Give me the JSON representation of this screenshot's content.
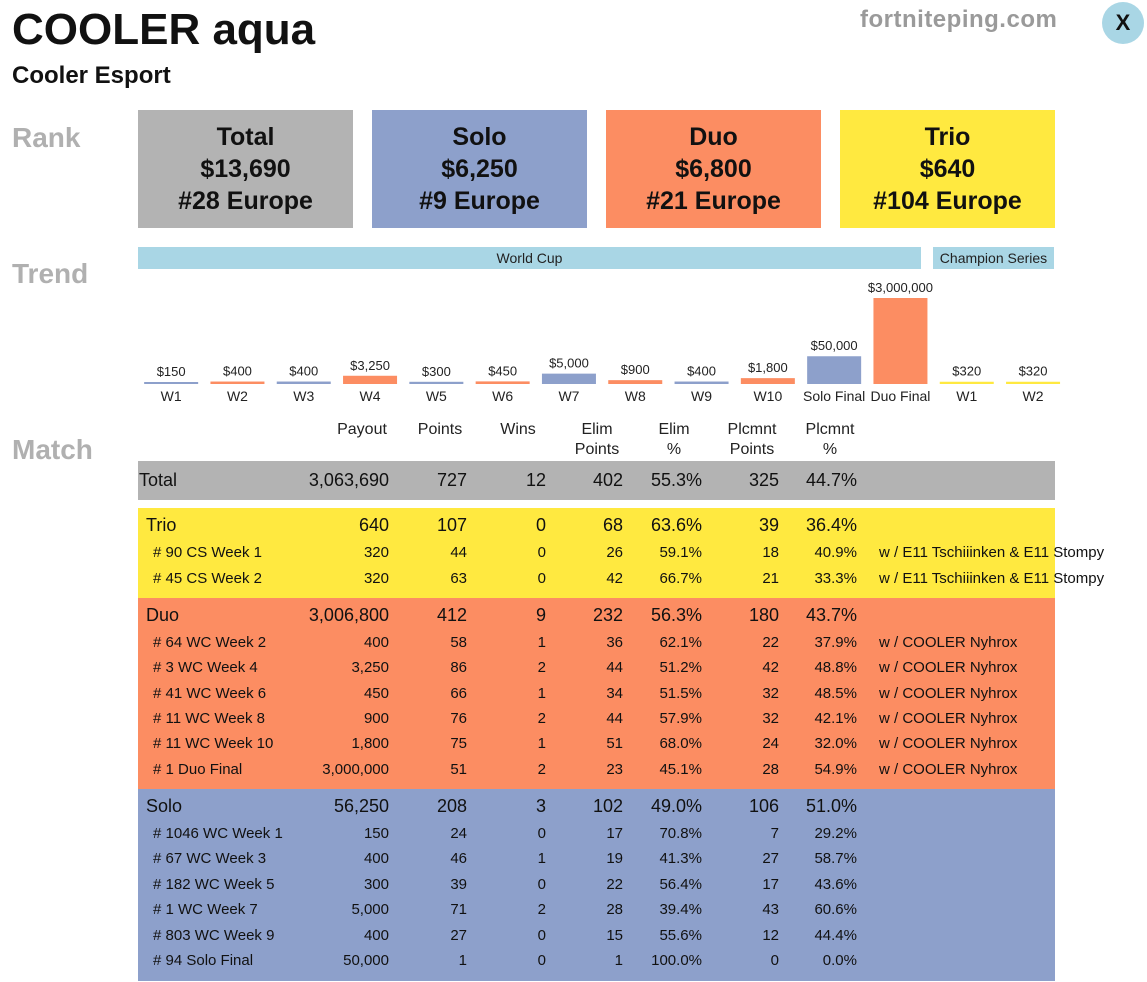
{
  "header": {
    "player_name": "COOLER aqua",
    "team_name": "Cooler Esport",
    "site": "fortniteping.com",
    "close_label": "X"
  },
  "sections": {
    "rank": "Rank",
    "trend": "Trend",
    "match": "Match"
  },
  "rank_cards": [
    {
      "title": "Total",
      "earnings": "$13,690",
      "rank": "#28 Europe",
      "color": "#b3b3b3"
    },
    {
      "title": "Solo",
      "earnings": "$6,250",
      "rank": "#9 Europe",
      "color": "#8da0cb"
    },
    {
      "title": "Duo",
      "earnings": "$6,800",
      "rank": "#21 Europe",
      "color": "#fc8d62"
    },
    {
      "title": "Trio",
      "earnings": "$640",
      "rank": "#104 Europe",
      "color": "#ffe940"
    }
  ],
  "trend": {
    "banners": [
      {
        "label": "World Cup"
      },
      {
        "label": "Champion Series"
      }
    ]
  },
  "chart_data": {
    "type": "bar",
    "categories": [
      "W1",
      "W2",
      "W3",
      "W4",
      "W5",
      "W6",
      "W7",
      "W8",
      "W9",
      "W10",
      "Solo Final",
      "Duo Final",
      "W1",
      "W2"
    ],
    "values": [
      150,
      400,
      400,
      3250,
      300,
      450,
      5000,
      900,
      400,
      1800,
      50000,
      3000000,
      320,
      320
    ],
    "value_labels": [
      "$150",
      "$400",
      "$400",
      "$3,250",
      "$300",
      "$450",
      "$5,000",
      "$900",
      "$400",
      "$1,800",
      "$50,000",
      "$3,000,000",
      "$320",
      "$320"
    ],
    "mode": [
      "solo",
      "duo",
      "solo",
      "duo",
      "solo",
      "duo",
      "solo",
      "duo",
      "solo",
      "duo",
      "solo",
      "duo",
      "trio",
      "trio"
    ],
    "scale": "log",
    "colors": {
      "solo": "#8da0cb",
      "duo": "#fc8d62",
      "trio": "#ffe940"
    }
  },
  "match": {
    "columns": [
      {
        "id": "payout",
        "label": "Payout"
      },
      {
        "id": "points",
        "label": "Points"
      },
      {
        "id": "wins",
        "label": "Wins"
      },
      {
        "id": "elim_points",
        "label": "Elim\nPoints"
      },
      {
        "id": "elim_pct",
        "label": "Elim\n%"
      },
      {
        "id": "plc_points",
        "label": "Plcmnt\nPoints"
      },
      {
        "id": "plc_pct",
        "label": "Plcmnt\n%"
      }
    ],
    "total": {
      "label": "Total",
      "payout": "3,063,690",
      "points": "727",
      "wins": "12",
      "elim_points": "402",
      "elim_pct": "55.3%",
      "plc_points": "325",
      "plc_pct": "44.7%"
    },
    "groups": [
      {
        "color": "#ffe940",
        "summary": {
          "label": "Trio",
          "payout": "640",
          "points": "107",
          "wins": "0",
          "elim_points": "68",
          "elim_pct": "63.6%",
          "plc_points": "39",
          "plc_pct": "36.4%"
        },
        "rows": [
          {
            "label": "# 90 CS Week 1",
            "payout": "320",
            "points": "44",
            "wins": "0",
            "elim_points": "26",
            "elim_pct": "59.1%",
            "plc_points": "18",
            "plc_pct": "40.9%",
            "partner": "w / E11 Tschiiinken & E11 Stompy"
          },
          {
            "label": "# 45 CS Week 2",
            "payout": "320",
            "points": "63",
            "wins": "0",
            "elim_points": "42",
            "elim_pct": "66.7%",
            "plc_points": "21",
            "plc_pct": "33.3%",
            "partner": "w / E11 Tschiiinken & E11 Stompy"
          }
        ]
      },
      {
        "color": "#fc8d62",
        "summary": {
          "label": "Duo",
          "payout": "3,006,800",
          "points": "412",
          "wins": "9",
          "elim_points": "232",
          "elim_pct": "56.3%",
          "plc_points": "180",
          "plc_pct": "43.7%"
        },
        "rows": [
          {
            "label": "# 64 WC Week 2",
            "payout": "400",
            "points": "58",
            "wins": "1",
            "elim_points": "36",
            "elim_pct": "62.1%",
            "plc_points": "22",
            "plc_pct": "37.9%",
            "partner": "w / COOLER Nyhrox"
          },
          {
            "label": "# 3 WC Week 4",
            "payout": "3,250",
            "points": "86",
            "wins": "2",
            "elim_points": "44",
            "elim_pct": "51.2%",
            "plc_points": "42",
            "plc_pct": "48.8%",
            "partner": "w / COOLER Nyhrox"
          },
          {
            "label": "# 41 WC Week 6",
            "payout": "450",
            "points": "66",
            "wins": "1",
            "elim_points": "34",
            "elim_pct": "51.5%",
            "plc_points": "32",
            "plc_pct": "48.5%",
            "partner": "w / COOLER Nyhrox"
          },
          {
            "label": "# 11 WC Week 8",
            "payout": "900",
            "points": "76",
            "wins": "2",
            "elim_points": "44",
            "elim_pct": "57.9%",
            "plc_points": "32",
            "plc_pct": "42.1%",
            "partner": "w / COOLER Nyhrox"
          },
          {
            "label": "# 11 WC Week 10",
            "payout": "1,800",
            "points": "75",
            "wins": "1",
            "elim_points": "51",
            "elim_pct": "68.0%",
            "plc_points": "24",
            "plc_pct": "32.0%",
            "partner": "w / COOLER Nyhrox"
          },
          {
            "label": "# 1 Duo Final",
            "payout": "3,000,000",
            "points": "51",
            "wins": "2",
            "elim_points": "23",
            "elim_pct": "45.1%",
            "plc_points": "28",
            "plc_pct": "54.9%",
            "partner": "w / COOLER Nyhrox"
          }
        ]
      },
      {
        "color": "#8da0cb",
        "summary": {
          "label": "Solo",
          "payout": "56,250",
          "points": "208",
          "wins": "3",
          "elim_points": "102",
          "elim_pct": "49.0%",
          "plc_points": "106",
          "plc_pct": "51.0%"
        },
        "rows": [
          {
            "label": "# 1046 WC Week 1",
            "payout": "150",
            "points": "24",
            "wins": "0",
            "elim_points": "17",
            "elim_pct": "70.8%",
            "plc_points": "7",
            "plc_pct": "29.2%",
            "partner": ""
          },
          {
            "label": "# 67 WC Week 3",
            "payout": "400",
            "points": "46",
            "wins": "1",
            "elim_points": "19",
            "elim_pct": "41.3%",
            "plc_points": "27",
            "plc_pct": "58.7%",
            "partner": ""
          },
          {
            "label": "# 182 WC Week 5",
            "payout": "300",
            "points": "39",
            "wins": "0",
            "elim_points": "22",
            "elim_pct": "56.4%",
            "plc_points": "17",
            "plc_pct": "43.6%",
            "partner": ""
          },
          {
            "label": "# 1 WC Week 7",
            "payout": "5,000",
            "points": "71",
            "wins": "2",
            "elim_points": "28",
            "elim_pct": "39.4%",
            "plc_points": "43",
            "plc_pct": "60.6%",
            "partner": ""
          },
          {
            "label": "# 803 WC Week 9",
            "payout": "400",
            "points": "27",
            "wins": "0",
            "elim_points": "15",
            "elim_pct": "55.6%",
            "plc_points": "12",
            "plc_pct": "44.4%",
            "partner": ""
          },
          {
            "label": "# 94 Solo Final",
            "payout": "50,000",
            "points": "1",
            "wins": "0",
            "elim_points": "1",
            "elim_pct": "100.0%",
            "plc_points": "0",
            "plc_pct": "0.0%",
            "partner": ""
          }
        ]
      }
    ]
  }
}
